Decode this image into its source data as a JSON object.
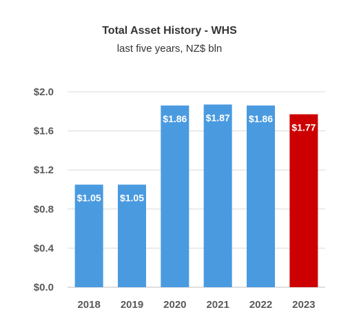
{
  "chart_data": {
    "type": "bar",
    "title": "Total Asset History - WHS",
    "subtitle": "last five years, NZ$ bln",
    "categories": [
      "2018",
      "2019",
      "2020",
      "2021",
      "2022",
      "2023"
    ],
    "values": [
      1.05,
      1.05,
      1.86,
      1.87,
      1.86,
      1.77
    ],
    "data_labels": [
      "$1.05",
      "$1.05",
      "$1.86",
      "$1.87",
      "$1.86",
      "$1.77"
    ],
    "y_ticks": [
      0.0,
      0.4,
      0.8,
      1.2,
      1.6,
      2.0
    ],
    "y_tick_labels": [
      "$0.0",
      "$0.4",
      "$0.8",
      "$1.2",
      "$1.6",
      "$2.0"
    ],
    "ylim": [
      0,
      2.0
    ],
    "grid": true,
    "legend": false,
    "colors": {
      "default": "#4a9ae0",
      "highlight": "#cc0000",
      "highlight_category": "2023"
    }
  }
}
